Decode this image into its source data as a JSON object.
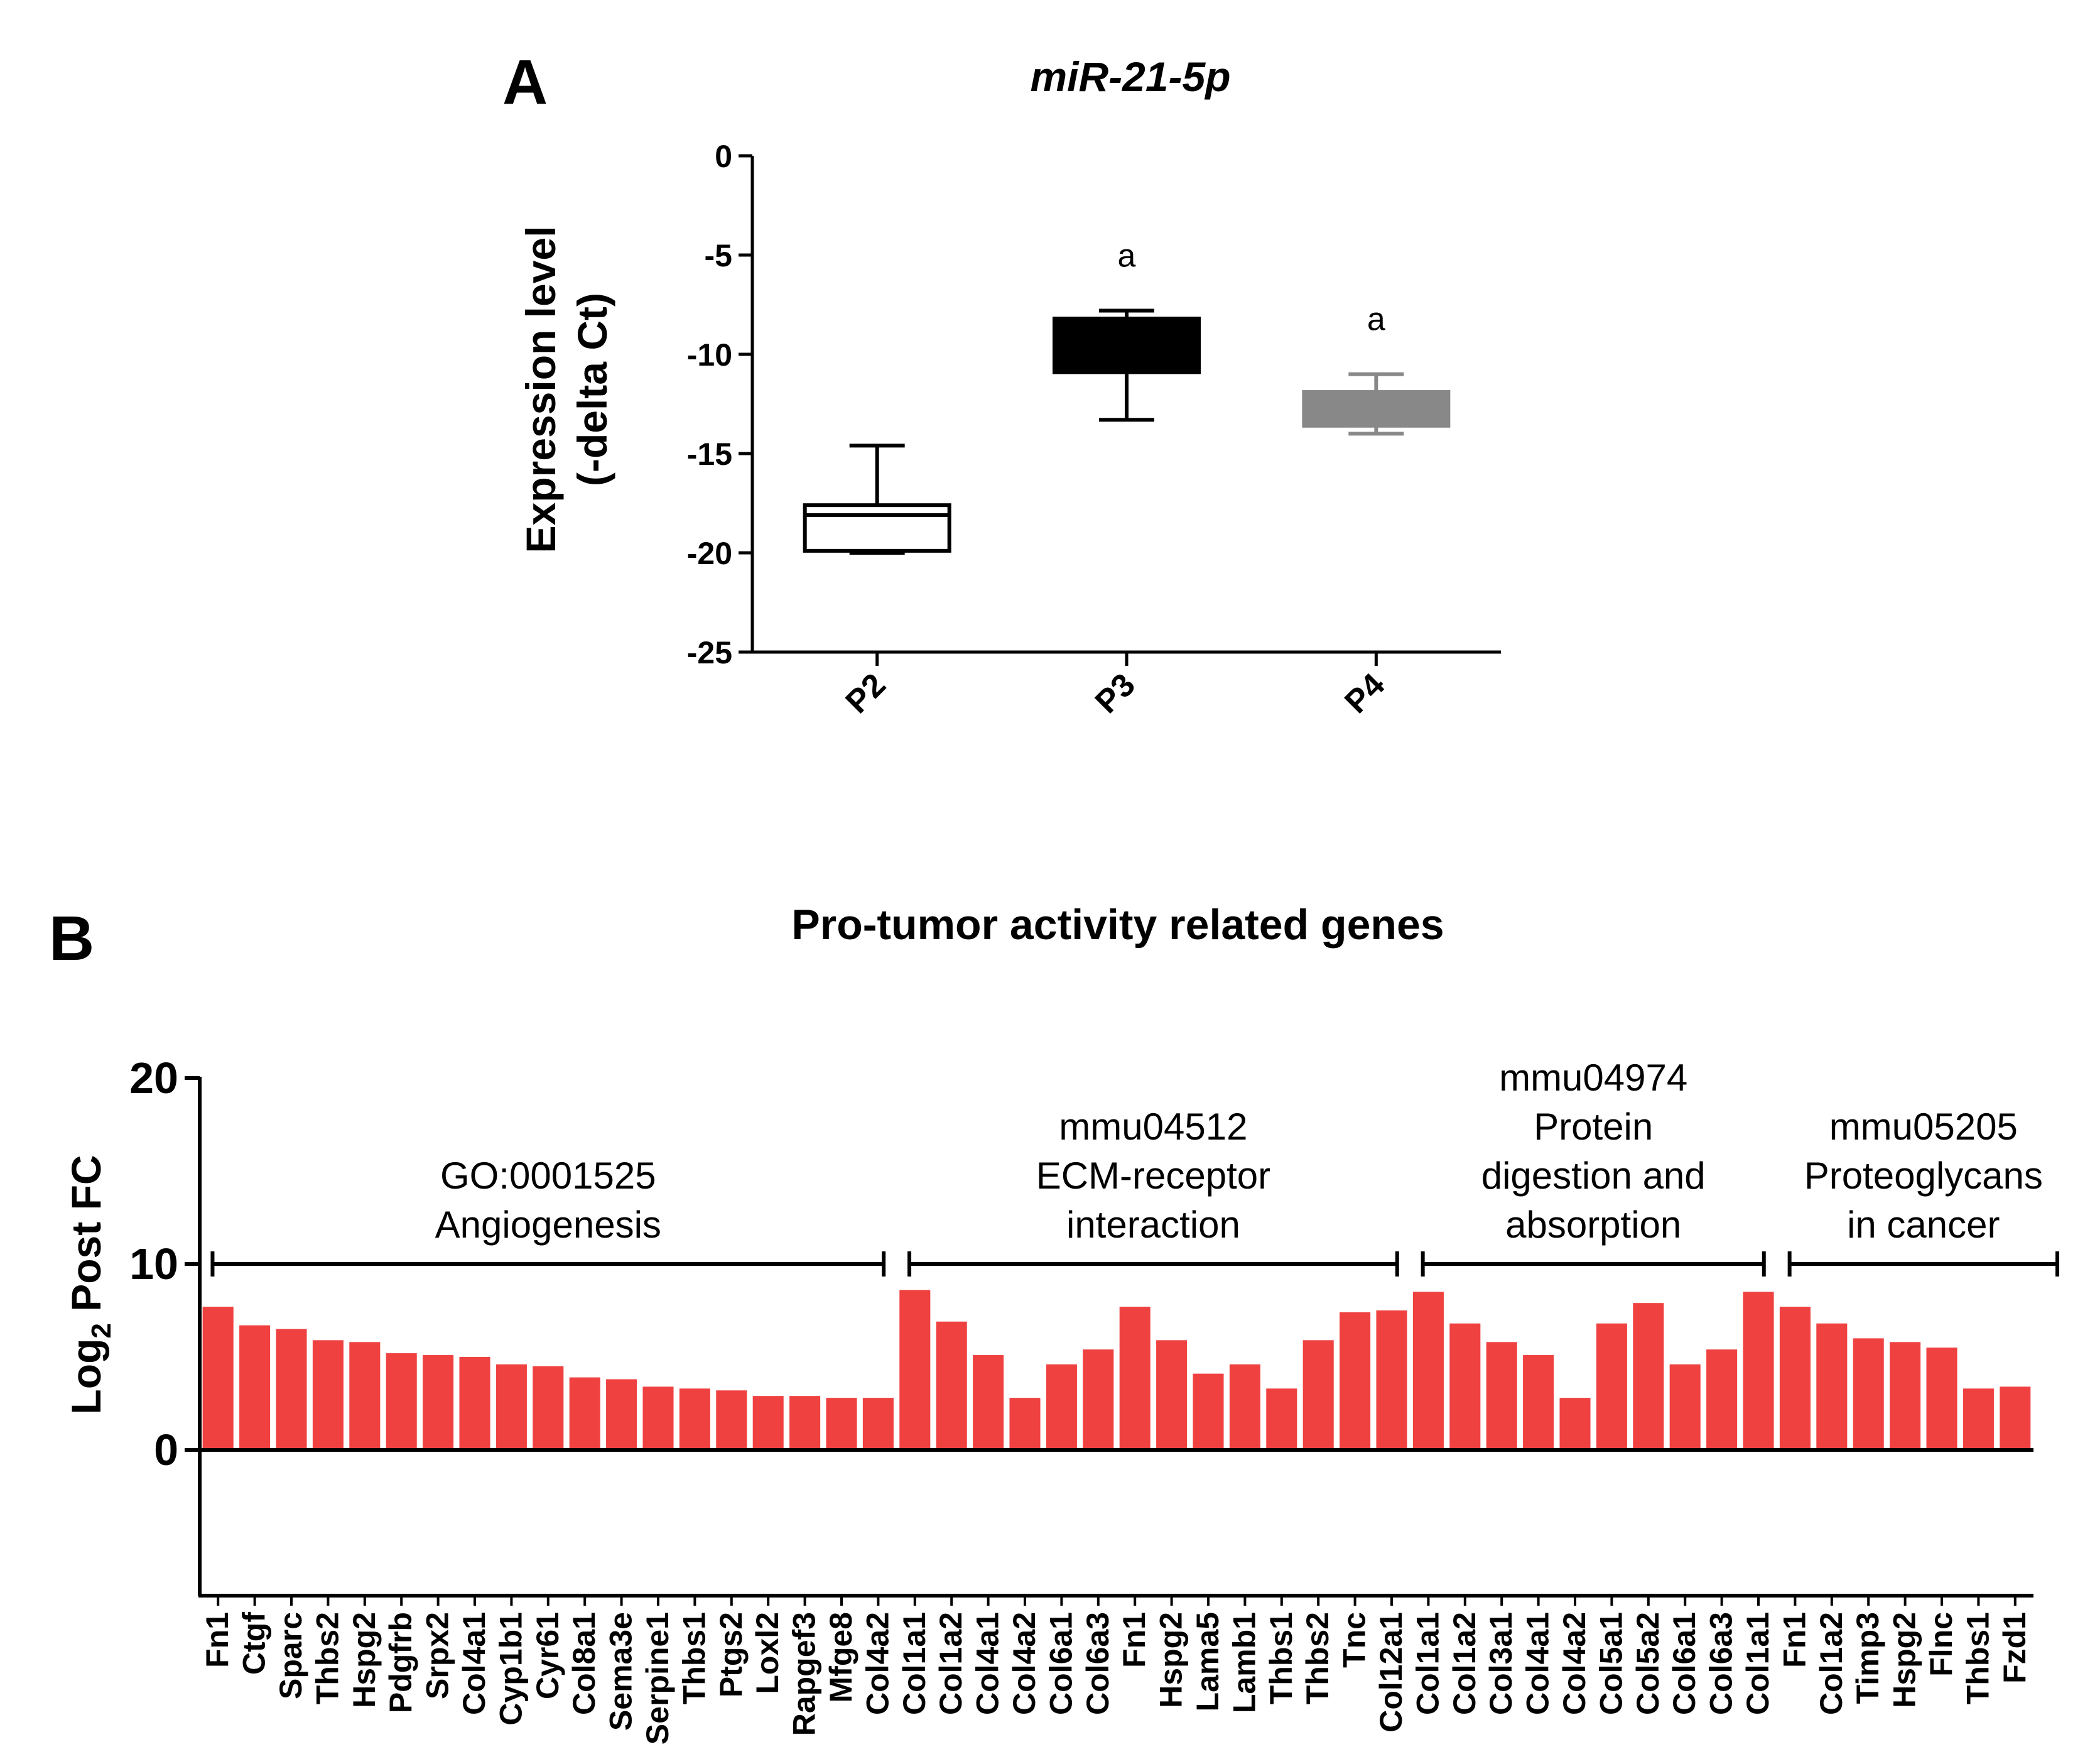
{
  "chart_data": [
    {
      "panel": "A",
      "type": "box",
      "title": "miR-21-5p",
      "ylabel_line1": "Expression level",
      "ylabel_line2": "(-delta Ct)",
      "xlabel": "",
      "ylim": [
        -25,
        0
      ],
      "yticks": [
        "0",
        "-5",
        "-10",
        "-15",
        "-20",
        "-25"
      ],
      "ytick_values": [
        0,
        -5,
        -10,
        -15,
        -20,
        -25
      ],
      "categories": [
        "P2",
        "P3",
        "P4"
      ],
      "boxes": [
        {
          "name": "P2",
          "whisker_high": -14.6,
          "q3": -17.6,
          "median": -18.1,
          "q1": -19.9,
          "whisker_low": -20.0,
          "fill": "#ffffff",
          "annotation": ""
        },
        {
          "name": "P3",
          "whisker_high": -7.8,
          "q3": -8.2,
          "median": -10.1,
          "q1": -10.9,
          "whisker_low": -13.3,
          "fill": "#000000",
          "annotation": "a"
        },
        {
          "name": "P4",
          "whisker_high": -11.0,
          "q3": -11.9,
          "median": -12.7,
          "q1": -13.6,
          "whisker_low": -14.0,
          "fill": "#888888",
          "annotation": "a"
        }
      ]
    },
    {
      "panel": "B",
      "type": "bar",
      "title": "Pro-tumor activity related genes",
      "ylabel_main": "Log",
      "ylabel_sub": "2",
      "ylabel_rest": " Post FC",
      "ylim": [
        -8,
        20
      ],
      "yticks": [
        "20",
        "10",
        "0"
      ],
      "ytick_values": [
        20,
        10,
        0
      ],
      "bar_color": "#f04141",
      "groups": [
        {
          "lines": [
            "GO:0001525",
            "Angiogenesis"
          ],
          "start": 0,
          "end": 18
        },
        {
          "lines": [
            "mmu04512",
            "ECM-receptor",
            "interaction"
          ],
          "start": 19,
          "end": 32
        },
        {
          "lines": [
            "mmu04974",
            "Protein",
            "digestion and",
            "absorption"
          ],
          "start": 33,
          "end": 42
        },
        {
          "lines": [
            "mmu05205",
            "Proteoglycans",
            "in cancer"
          ],
          "start": 43,
          "end": 50
        }
      ],
      "categories": [
        "Fn1",
        "Ctgf",
        "Sparc",
        "Thbs2",
        "Hspg2",
        "Pdgfrb",
        "Srpx2",
        "Col4a1",
        "Cyp1b1",
        "Cyr61",
        "Col8a1",
        "Sema3e",
        "Serpine1",
        "Thbs1",
        "Ptgs2",
        "Loxl2",
        "Rapgef3",
        "Mfge8",
        "Col4a2",
        "Col1a1",
        "Col1a2",
        "Col4a1",
        "Col4a2",
        "Col6a1",
        "Col6a3",
        "Fn1",
        "Hspg2",
        "Lama5",
        "Lamb1",
        "Thbs1",
        "Thbs2",
        "Tnc",
        "Col12a1",
        "Col1a1",
        "Col1a2",
        "Col3a1",
        "Col4a1",
        "Col4a2",
        "Col5a1",
        "Col5a2",
        "Col6a1",
        "Col6a3",
        "Col1a1",
        "Fn1",
        "Col1a2",
        "Timp3",
        "Hspg2",
        "Flnc",
        "Thbs1",
        "Fzd1"
      ],
      "values": [
        7.7,
        6.7,
        6.5,
        5.9,
        5.8,
        5.2,
        5.1,
        5.0,
        4.6,
        4.5,
        3.9,
        3.8,
        3.4,
        3.3,
        3.2,
        2.9,
        2.9,
        2.8,
        2.8,
        8.6,
        6.9,
        5.1,
        2.8,
        4.6,
        5.4,
        7.7,
        5.9,
        4.1,
        4.6,
        3.3,
        5.9,
        7.4,
        7.5,
        8.5,
        6.8,
        5.8,
        5.1,
        2.8,
        6.8,
        7.9,
        4.6,
        5.4,
        8.5,
        7.7,
        6.8,
        6.0,
        5.8,
        5.5,
        3.3,
        3.4
      ]
    }
  ]
}
